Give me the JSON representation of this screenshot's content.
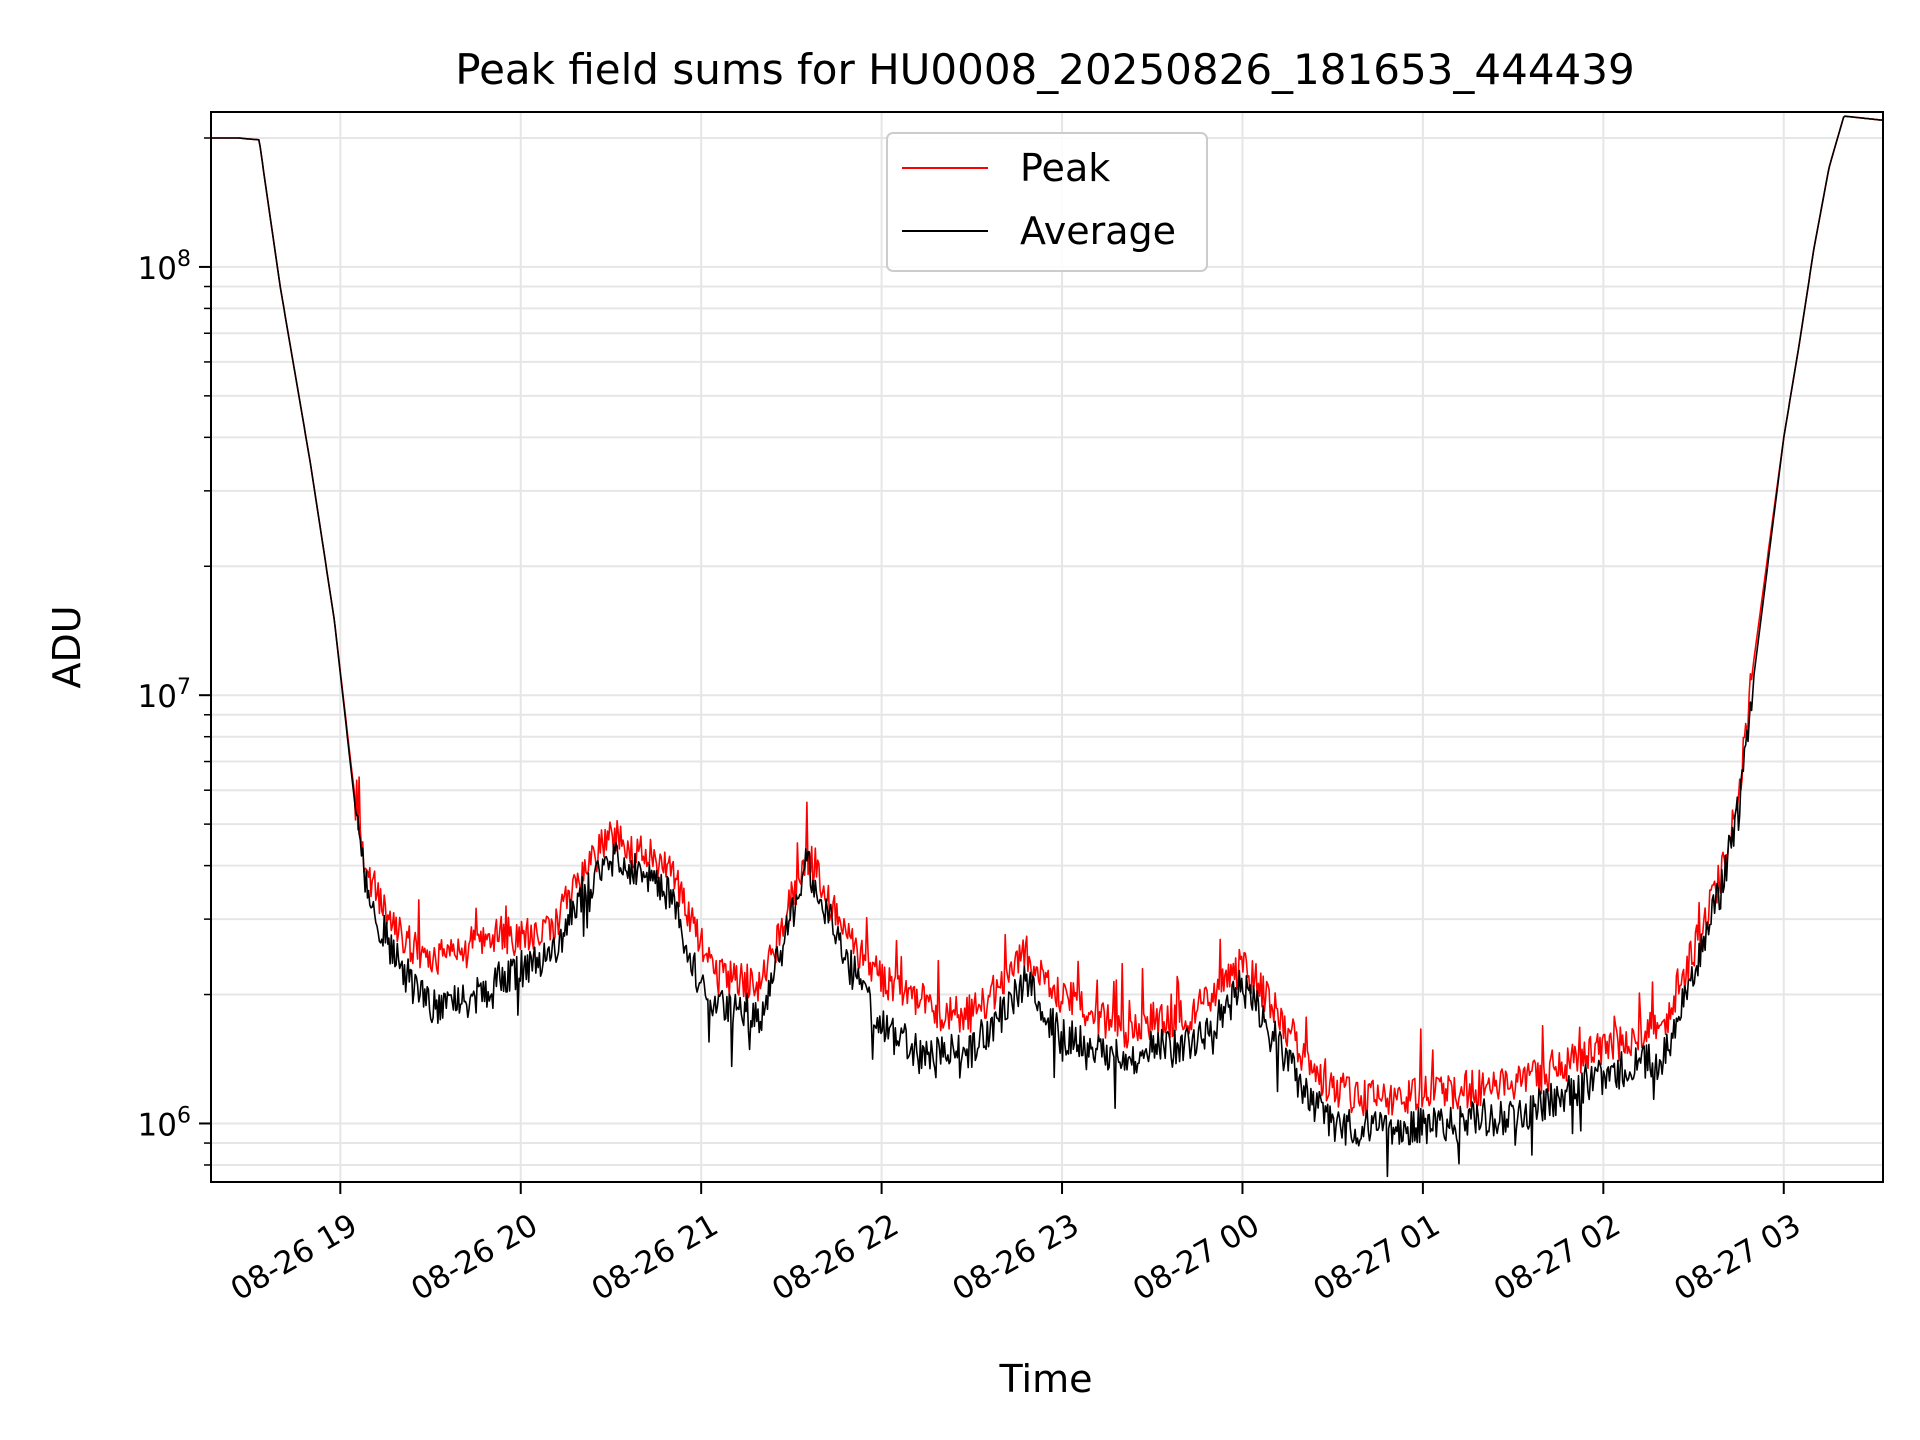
{
  "chart_data": {
    "type": "line",
    "title": "Peak field sums for HU0008_20250826_181653_444439",
    "xlabel": "Time",
    "ylabel": "ADU",
    "yscale": "log",
    "ylim": [
      730000,
      230000000
    ],
    "xlim": [
      "2025-08-26 18:17",
      "2025-08-27 03:33"
    ],
    "grid": true,
    "legend_position": "top-center",
    "x_ticks": [
      {
        "t": "2025-08-26 19:00",
        "label": "08-26 19"
      },
      {
        "t": "2025-08-26 20:00",
        "label": "08-26 20"
      },
      {
        "t": "2025-08-26 21:00",
        "label": "08-26 21"
      },
      {
        "t": "2025-08-26 22:00",
        "label": "08-26 22"
      },
      {
        "t": "2025-08-26 23:00",
        "label": "08-26 23"
      },
      {
        "t": "2025-08-27 00:00",
        "label": "08-27 00"
      },
      {
        "t": "2025-08-27 01:00",
        "label": "08-27 01"
      },
      {
        "t": "2025-08-27 02:00",
        "label": "08-27 02"
      },
      {
        "t": "2025-08-27 03:00",
        "label": "08-27 03"
      }
    ],
    "y_ticks": [
      {
        "value": 1000000,
        "base": "10",
        "exp": "6"
      },
      {
        "value": 10000000,
        "base": "10",
        "exp": "7"
      },
      {
        "value": 100000000,
        "base": "10",
        "exp": "8"
      }
    ],
    "x": [
      "2025-08-26 18:17",
      "2025-08-26 18:26",
      "2025-08-26 18:33",
      "2025-08-26 18:40",
      "2025-08-26 18:50",
      "2025-08-26 18:58",
      "2025-08-26 19:04",
      "2025-08-26 19:07",
      "2025-08-26 19:12",
      "2025-08-26 19:18",
      "2025-08-26 19:24",
      "2025-08-26 19:30",
      "2025-08-26 19:40",
      "2025-08-26 19:50",
      "2025-08-26 20:00",
      "2025-08-26 20:10",
      "2025-08-26 20:20",
      "2025-08-26 20:30",
      "2025-08-26 20:40",
      "2025-08-26 20:50",
      "2025-08-26 21:00",
      "2025-08-26 21:05",
      "2025-08-26 21:20",
      "2025-08-26 21:30",
      "2025-08-26 21:35",
      "2025-08-26 21:40",
      "2025-08-26 21:45",
      "2025-08-26 21:50",
      "2025-08-26 22:00",
      "2025-08-26 22:10",
      "2025-08-26 22:20",
      "2025-08-26 22:30",
      "2025-08-26 22:40",
      "2025-08-26 22:48",
      "2025-08-26 22:53",
      "2025-08-26 23:00",
      "2025-08-26 23:10",
      "2025-08-26 23:20",
      "2025-08-26 23:30",
      "2025-08-26 23:40",
      "2025-08-26 23:50",
      "2025-08-27 00:00",
      "2025-08-27 00:10",
      "2025-08-27 00:20",
      "2025-08-27 00:30",
      "2025-08-27 00:40",
      "2025-08-27 00:50",
      "2025-08-27 01:00",
      "2025-08-27 01:10",
      "2025-08-27 01:20",
      "2025-08-27 01:30",
      "2025-08-27 01:40",
      "2025-08-27 01:50",
      "2025-08-27 02:00",
      "2025-08-27 02:10",
      "2025-08-27 02:20",
      "2025-08-27 02:30",
      "2025-08-27 02:40",
      "2025-08-27 02:45",
      "2025-08-27 02:50",
      "2025-08-27 02:55",
      "2025-08-27 03:00",
      "2025-08-27 03:05",
      "2025-08-27 03:10",
      "2025-08-27 03:15",
      "2025-08-27 03:20",
      "2025-08-27 03:33"
    ],
    "series": [
      {
        "name": "Peak",
        "color": "#ff0000",
        "values": [
          200000000,
          200000000,
          198000000,
          90000000,
          35000000,
          15000000,
          6500000,
          4400000,
          3400000,
          2900000,
          2600000,
          2400000,
          2500000,
          2800000,
          2700000,
          2800000,
          3800000,
          4600000,
          4300000,
          3900000,
          2600000,
          2200000,
          2100000,
          3300000,
          4200000,
          3700000,
          3000000,
          2600000,
          2200000,
          2000000,
          1800000,
          1800000,
          2100000,
          2500000,
          2200000,
          2000000,
          1800000,
          1650000,
          1750000,
          1750000,
          1950000,
          2350000,
          1900000,
          1450000,
          1200000,
          1150000,
          1150000,
          1180000,
          1180000,
          1220000,
          1250000,
          1300000,
          1400000,
          1500000,
          1600000,
          1700000,
          2500000,
          4000000,
          6000000,
          12000000,
          22000000,
          40000000,
          65000000,
          110000000,
          170000000,
          225000000,
          220000000
        ]
      },
      {
        "name": "Average",
        "color": "#000000",
        "values": [
          200000000,
          200000000,
          198000000,
          90000000,
          35000000,
          15000000,
          6300000,
          4100000,
          3000000,
          2500000,
          2100000,
          1900000,
          1900000,
          2100000,
          2300000,
          2400000,
          3400000,
          4200000,
          3900000,
          3400000,
          2100000,
          1900000,
          1800000,
          3000000,
          4000000,
          3400000,
          2700000,
          2300000,
          1700000,
          1500000,
          1450000,
          1500000,
          1800000,
          2200000,
          1800000,
          1600000,
          1500000,
          1400000,
          1500000,
          1500000,
          1700000,
          2100000,
          1650000,
          1200000,
          980000,
          980000,
          980000,
          990000,
          1000000,
          1030000,
          1050000,
          1100000,
          1200000,
          1300000,
          1350000,
          1450000,
          2200000,
          3700000,
          5500000,
          11000000,
          21000000,
          40000000,
          65000000,
          110000000,
          170000000,
          225000000,
          220000000
        ]
      }
    ]
  }
}
